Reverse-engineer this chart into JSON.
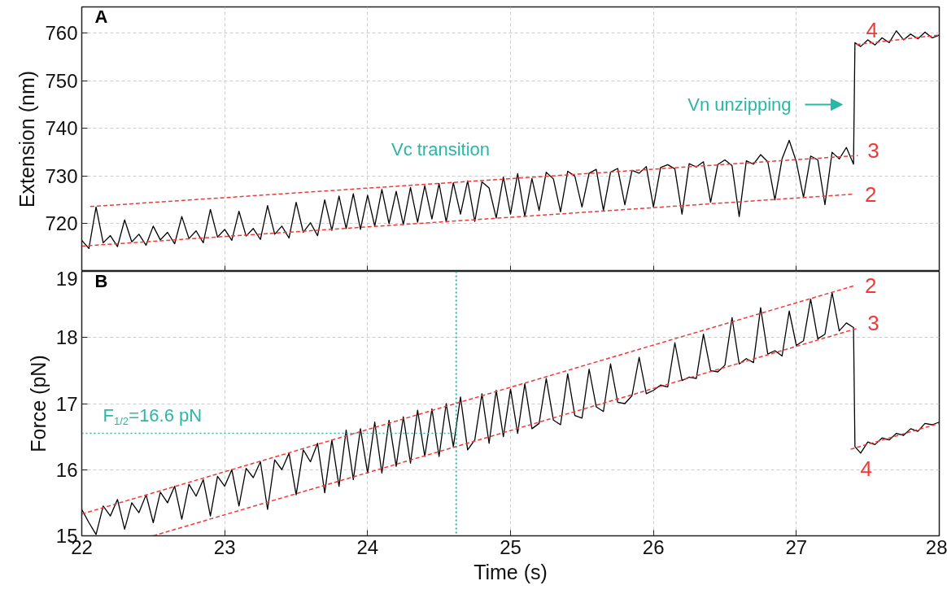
{
  "chart_data": [
    {
      "type": "line",
      "ylabel": "Extension (nm)",
      "xlim": [
        22,
        28
      ],
      "xticks": [
        22,
        23,
        24,
        25,
        26,
        27,
        28
      ],
      "ylim": [
        710,
        765.5
      ],
      "yticks": [
        720,
        730,
        740,
        750,
        760
      ],
      "grid": true,
      "tick_labels": "y",
      "annotations": [
        "A",
        "Vc transition",
        "Vn unzipping"
      ],
      "series": [
        {
          "color": "#000000",
          "x": [
            22.0,
            22.05,
            22.1,
            22.15,
            22.2,
            22.25,
            22.3,
            22.35,
            22.4,
            22.45,
            22.5,
            22.55,
            22.6,
            22.65,
            22.7,
            22.75,
            22.8,
            22.85,
            22.9,
            22.95,
            23.0,
            23.05,
            23.1,
            23.15,
            23.2,
            23.25,
            23.3,
            23.35,
            23.4,
            23.45,
            23.5,
            23.55,
            23.6,
            23.65,
            23.7,
            23.75,
            23.8,
            23.85,
            23.9,
            23.95,
            24.0,
            24.05,
            24.1,
            24.15,
            24.2,
            24.25,
            24.3,
            24.35,
            24.4,
            24.45,
            24.5,
            24.55,
            24.6,
            24.65,
            24.7,
            24.75,
            24.8,
            24.85,
            24.9,
            24.95,
            25.0,
            25.05,
            25.1,
            25.15,
            25.2,
            25.25,
            25.3,
            25.35,
            25.4,
            25.45,
            25.5,
            25.55,
            25.6,
            25.65,
            25.7,
            25.75,
            25.8,
            25.85,
            25.9,
            25.95,
            26.0,
            26.05,
            26.1,
            26.15,
            26.2,
            26.25,
            26.3,
            26.35,
            26.4,
            26.45,
            26.5,
            26.55,
            26.6,
            26.65,
            26.7,
            26.75,
            26.8,
            26.85,
            26.9,
            26.95,
            27.0,
            27.05,
            27.1,
            27.15,
            27.2,
            27.25,
            27.3,
            27.35,
            27.4,
            27.41,
            27.45,
            27.5,
            27.55,
            27.6,
            27.65,
            27.7,
            27.75,
            27.8,
            27.85,
            27.9,
            27.95,
            28.0
          ],
          "values": [
            716.5,
            714.8,
            723.5,
            716.0,
            717.5,
            715.2,
            720.8,
            716.2,
            717.8,
            715.5,
            719.5,
            716.6,
            718.2,
            715.8,
            721.5,
            716.9,
            718.5,
            716.0,
            723.0,
            717.2,
            718.8,
            716.5,
            722.6,
            717.4,
            719.0,
            716.7,
            723.8,
            717.8,
            719.5,
            717.0,
            724.5,
            718.2,
            720.2,
            717.5,
            725.0,
            718.6,
            725.8,
            719.0,
            726.3,
            718.8,
            726.0,
            719.5,
            727.2,
            720.0,
            726.8,
            719.8,
            727.6,
            720.3,
            728.0,
            721.0,
            728.4,
            720.4,
            728.6,
            722.0,
            729.0,
            720.5,
            728.8,
            727.5,
            721.2,
            729.8,
            722.0,
            730.5,
            721.5,
            729.5,
            722.8,
            730.8,
            729.4,
            722.5,
            731.0,
            730.0,
            723.5,
            730.6,
            731.4,
            722.8,
            730.8,
            731.6,
            724.0,
            731.2,
            730.6,
            732.0,
            723.5,
            731.8,
            732.4,
            731.5,
            722.0,
            732.6,
            731.9,
            733.0,
            724.5,
            732.4,
            733.4,
            732.2,
            721.5,
            733.2,
            732.5,
            734.5,
            733.0,
            725.0,
            733.6,
            737.5,
            733.0,
            725.5,
            734.2,
            733.4,
            724.0,
            735.0,
            733.6,
            736.0,
            732.5,
            758.0,
            757.2,
            758.6,
            757.5,
            759.0,
            758.0,
            760.5,
            758.6,
            759.8,
            758.8,
            760.2,
            759.0,
            759.6
          ]
        },
        {
          "name": "2",
          "color": "#f03a3a",
          "line_style": "dashed",
          "x": [
            22.0,
            27.4
          ],
          "values": [
            715.3,
            726.2
          ]
        },
        {
          "name": "3",
          "color": "#f03a3a",
          "line_style": "dashed",
          "x": [
            22.06,
            27.43
          ],
          "values": [
            723.6,
            734.3
          ]
        },
        {
          "name": "4",
          "color": "#f03a3a",
          "line_style": "dashed",
          "x": [
            27.42,
            28.0
          ],
          "values": [
            757.6,
            759.6
          ]
        }
      ]
    },
    {
      "type": "line",
      "xlabel": "Time (s)",
      "ylabel": "Force (pN)",
      "xlim": [
        22,
        28
      ],
      "xticks": [
        22,
        23,
        24,
        25,
        26,
        27,
        28
      ],
      "ylim": [
        15,
        19
      ],
      "yticks": [
        15,
        16,
        17,
        18,
        19
      ],
      "grid": true,
      "annotations": [
        "B",
        "F$_{1/2}$=16.6 pN"
      ],
      "ref_lines": [
        {
          "axis": "x",
          "value": 24.62,
          "color": "#2ab7a6",
          "line_style": "dotted"
        }
      ],
      "series": [
        {
          "color": "#000000",
          "x": [
            22.0,
            22.05,
            22.1,
            22.15,
            22.2,
            22.25,
            22.3,
            22.35,
            22.4,
            22.45,
            22.5,
            22.55,
            22.6,
            22.65,
            22.7,
            22.75,
            22.8,
            22.85,
            22.9,
            22.95,
            23.0,
            23.05,
            23.1,
            23.15,
            23.2,
            23.25,
            23.3,
            23.35,
            23.4,
            23.45,
            23.5,
            23.55,
            23.6,
            23.65,
            23.7,
            23.75,
            23.8,
            23.85,
            23.9,
            23.95,
            24.0,
            24.05,
            24.1,
            24.15,
            24.2,
            24.25,
            24.3,
            24.35,
            24.4,
            24.45,
            24.5,
            24.55,
            24.6,
            24.65,
            24.7,
            24.75,
            24.8,
            24.85,
            24.9,
            24.95,
            25.0,
            25.05,
            25.1,
            25.15,
            25.2,
            25.25,
            25.3,
            25.35,
            25.4,
            25.45,
            25.5,
            25.55,
            25.6,
            25.65,
            25.7,
            25.75,
            25.8,
            25.85,
            25.9,
            25.95,
            26.0,
            26.05,
            26.1,
            26.15,
            26.2,
            26.25,
            26.3,
            26.35,
            26.4,
            26.45,
            26.5,
            26.55,
            26.6,
            26.65,
            26.7,
            26.75,
            26.8,
            26.85,
            26.9,
            26.95,
            27.0,
            27.05,
            27.1,
            27.15,
            27.2,
            27.25,
            27.3,
            27.35,
            27.4,
            27.41,
            27.45,
            27.5,
            27.55,
            27.6,
            27.65,
            27.7,
            27.75,
            27.8,
            27.85,
            27.9,
            27.95,
            28.0
          ],
          "values": [
            15.4,
            15.2,
            15.02,
            15.45,
            15.3,
            15.55,
            15.1,
            15.5,
            15.35,
            15.62,
            15.2,
            15.66,
            15.5,
            15.75,
            15.25,
            15.78,
            15.6,
            15.85,
            15.3,
            15.9,
            15.75,
            16.0,
            15.45,
            16.02,
            15.88,
            16.12,
            15.4,
            16.15,
            16.0,
            16.25,
            15.62,
            16.3,
            16.12,
            16.4,
            15.65,
            16.45,
            15.75,
            16.6,
            15.85,
            16.62,
            15.95,
            16.72,
            15.95,
            16.75,
            16.05,
            16.8,
            16.1,
            16.9,
            16.2,
            16.92,
            16.2,
            17.0,
            16.35,
            17.1,
            16.3,
            16.45,
            17.15,
            16.4,
            17.2,
            16.5,
            17.22,
            16.55,
            17.3,
            16.62,
            16.7,
            17.38,
            16.75,
            16.68,
            17.45,
            16.82,
            16.78,
            17.52,
            16.95,
            16.88,
            17.6,
            17.02,
            17.0,
            17.12,
            17.7,
            17.15,
            17.2,
            17.28,
            17.25,
            17.92,
            17.35,
            17.4,
            17.38,
            18.05,
            17.5,
            17.48,
            17.58,
            18.3,
            17.6,
            17.68,
            17.62,
            18.45,
            17.75,
            17.8,
            17.72,
            18.4,
            17.88,
            17.95,
            18.58,
            17.98,
            18.05,
            18.68,
            18.1,
            18.22,
            18.15,
            16.35,
            16.25,
            16.42,
            16.38,
            16.48,
            16.45,
            16.55,
            16.52,
            16.62,
            16.58,
            16.7,
            16.68,
            16.72
          ]
        },
        {
          "name": "2",
          "color": "#f03a3a",
          "line_style": "dashed",
          "x": [
            22.0,
            27.4
          ],
          "values": [
            15.33,
            18.78
          ]
        },
        {
          "name": "3",
          "color": "#f03a3a",
          "line_style": "dashed",
          "x": [
            22.5,
            27.43
          ],
          "values": [
            15.0,
            18.14
          ]
        },
        {
          "name": "4",
          "color": "#f03a3a",
          "line_style": "dashed",
          "x": [
            27.38,
            28.0
          ],
          "values": [
            16.31,
            16.7
          ]
        },
        {
          "color": "#2ab7a6",
          "line_style": "dotted",
          "x": [
            22.0,
            24.62
          ],
          "values": [
            16.55,
            16.55
          ]
        }
      ]
    }
  ]
}
